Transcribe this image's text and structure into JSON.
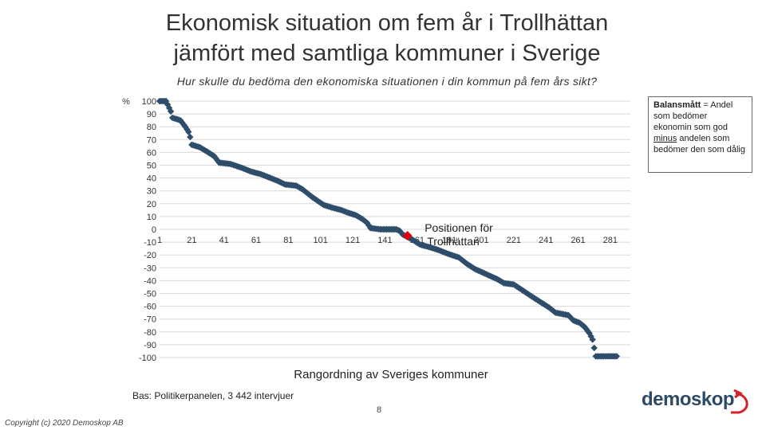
{
  "title_line1": "Ekonomisk situation om fem år i Trollhättan",
  "title_line2": "jämfört med samtliga kommuner i Sverige",
  "subtitle": "Hur skulle du bedöma den ekonomiska situationen i din kommun på fem års sikt?",
  "legend": {
    "bold": "Balansmått",
    "text1": " = Andel som bedömer ekonomin som god ",
    "underlined": "minus",
    "text2": " andelen som bedömer den som dålig"
  },
  "footer": {
    "bas": "Bas: Politikerpanelen, 3 442 intervjuer",
    "page": "8",
    "copyright": "Copyright (c) 2020 Demoskop AB",
    "logo": "demoskop"
  },
  "colors": {
    "series": "#2e4d6b",
    "highlight": "#e3000f",
    "gridline": "#d9d9d9"
  },
  "chart_data": {
    "type": "scatter",
    "ylabel": "%",
    "xlabel": "Rangordning av Sveriges kommuner",
    "ylim": [
      -100,
      100
    ],
    "xlim": [
      1,
      290
    ],
    "yticks": [
      100,
      90,
      80,
      70,
      60,
      50,
      40,
      30,
      20,
      10,
      0,
      -10,
      -20,
      -30,
      -40,
      -50,
      -60,
      -70,
      -80,
      -90,
      -100
    ],
    "ytick_labels": [
      "100",
      "90",
      "80",
      "70",
      "60",
      "50",
      "40",
      "30",
      "20",
      "10",
      "0",
      "-10",
      "-20",
      "-30",
      "-40",
      "-50",
      "-60",
      "-70",
      "-80",
      "-90",
      "-100"
    ],
    "xticks": [
      1,
      21,
      41,
      61,
      81,
      101,
      121,
      141,
      161,
      181,
      201,
      221,
      241,
      261,
      281
    ],
    "xtick_labels": [
      "1",
      "21",
      "41",
      "61",
      "81",
      "101",
      "121",
      "141",
      "161",
      "181",
      "201",
      "221",
      "241",
      "261",
      "281"
    ],
    "grid": true,
    "series_points": [
      [
        1,
        100
      ],
      [
        5,
        100
      ],
      [
        8,
        92
      ],
      [
        9,
        87
      ],
      [
        14,
        85
      ],
      [
        17,
        80
      ],
      [
        19,
        76
      ],
      [
        20,
        72
      ],
      [
        21,
        66
      ],
      [
        26,
        64
      ],
      [
        30,
        61
      ],
      [
        35,
        57
      ],
      [
        38,
        52
      ],
      [
        45,
        51
      ],
      [
        52,
        48
      ],
      [
        58,
        45
      ],
      [
        64,
        43
      ],
      [
        70,
        40
      ],
      [
        74,
        38
      ],
      [
        79,
        35
      ],
      [
        86,
        34
      ],
      [
        90,
        31
      ],
      [
        96,
        25
      ],
      [
        103,
        19
      ],
      [
        108,
        17
      ],
      [
        114,
        15
      ],
      [
        118,
        13
      ],
      [
        123,
        11
      ],
      [
        127,
        8
      ],
      [
        130,
        5
      ],
      [
        132,
        1
      ],
      [
        138,
        0
      ],
      [
        148,
        0
      ],
      [
        150,
        -1
      ],
      [
        152,
        -4
      ],
      [
        158,
        -8
      ],
      [
        163,
        -12
      ],
      [
        169,
        -14
      ],
      [
        174,
        -16
      ],
      [
        180,
        -19
      ],
      [
        187,
        -22
      ],
      [
        192,
        -27
      ],
      [
        197,
        -31
      ],
      [
        204,
        -35
      ],
      [
        211,
        -39
      ],
      [
        215,
        -42
      ],
      [
        221,
        -43
      ],
      [
        227,
        -48
      ],
      [
        233,
        -53
      ],
      [
        238,
        -57
      ],
      [
        243,
        -61
      ],
      [
        247,
        -65
      ],
      [
        255,
        -67
      ],
      [
        258,
        -71
      ],
      [
        262,
        -73
      ],
      [
        265,
        -76
      ],
      [
        268,
        -81
      ],
      [
        270,
        -86
      ],
      [
        272,
        -99
      ],
      [
        285,
        -99
      ]
    ],
    "highlight": {
      "x": 155,
      "y": -5,
      "label": "Positionen för Trollhättan"
    }
  }
}
